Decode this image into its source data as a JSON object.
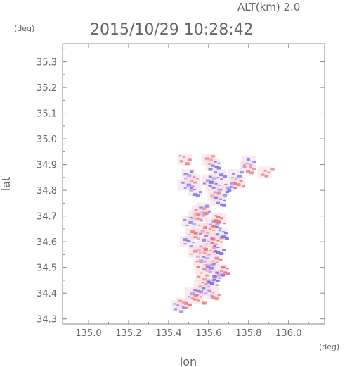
{
  "header": {
    "altitude_label": "ALT(km) 2.0",
    "timestamp": "2015/10/29 10:28:42"
  },
  "chart_data": {
    "type": "heatmap",
    "title": "2015/10/29 10:28:42",
    "subtitle": "ALT(km) 2.0",
    "xlabel": "lon",
    "ylabel": "lat",
    "x_unit": "(deg)",
    "y_unit": "(deg)",
    "xlim": [
      134.87,
      136.18
    ],
    "ylim": [
      34.28,
      35.37
    ],
    "x_ticks": [
      "135.0",
      "135.2",
      "135.4",
      "135.6",
      "135.8",
      "136.0"
    ],
    "x_tick_values": [
      135.0,
      135.2,
      135.4,
      135.6,
      135.8,
      136.0
    ],
    "y_ticks": [
      "34.3",
      "34.4",
      "34.5",
      "34.6",
      "34.7",
      "34.8",
      "34.9",
      "35.0",
      "35.1",
      "35.2",
      "35.3"
    ],
    "y_tick_values": [
      34.3,
      34.4,
      34.5,
      34.6,
      34.7,
      34.8,
      34.9,
      35.0,
      35.1,
      35.2,
      35.3
    ],
    "grid": false,
    "colors": {
      "positive": "#f07070",
      "negative": "#6f6ff2",
      "neutral": "#f1d3dd"
    },
    "cells": [
      {
        "lon": 135.48,
        "lat": 34.92,
        "v": 0.6
      },
      {
        "lon": 135.6,
        "lat": 34.92,
        "v": 0.5
      },
      {
        "lon": 135.62,
        "lat": 34.9,
        "v": -0.7
      },
      {
        "lon": 135.8,
        "lat": 34.91,
        "v": -0.6
      },
      {
        "lon": 135.79,
        "lat": 34.89,
        "v": 0.4
      },
      {
        "lon": 135.5,
        "lat": 34.86,
        "v": -0.5
      },
      {
        "lon": 135.52,
        "lat": 34.84,
        "v": 0.5
      },
      {
        "lon": 135.48,
        "lat": 34.82,
        "v": -0.4
      },
      {
        "lon": 135.53,
        "lat": 34.8,
        "v": -0.6
      },
      {
        "lon": 135.6,
        "lat": 34.84,
        "v": -0.8
      },
      {
        "lon": 135.62,
        "lat": 34.82,
        "v": -0.7
      },
      {
        "lon": 135.65,
        "lat": 34.86,
        "v": -0.6
      },
      {
        "lon": 135.67,
        "lat": 34.8,
        "v": -0.8
      },
      {
        "lon": 135.63,
        "lat": 34.78,
        "v": 0.3
      },
      {
        "lon": 135.65,
        "lat": 34.76,
        "v": -0.7
      },
      {
        "lon": 135.73,
        "lat": 34.86,
        "v": -0.5
      },
      {
        "lon": 135.7,
        "lat": 34.82,
        "v": -0.6
      },
      {
        "lon": 135.75,
        "lat": 34.83,
        "v": 0.6
      },
      {
        "lon": 135.88,
        "lat": 34.87,
        "v": 0.5
      },
      {
        "lon": 135.55,
        "lat": 34.72,
        "v": 0.7
      },
      {
        "lon": 135.58,
        "lat": 34.73,
        "v": -0.5
      },
      {
        "lon": 135.53,
        "lat": 34.7,
        "v": 0.3
      },
      {
        "lon": 135.56,
        "lat": 34.7,
        "v": 0.4
      },
      {
        "lon": 135.5,
        "lat": 34.68,
        "v": -0.4
      },
      {
        "lon": 135.62,
        "lat": 34.67,
        "v": -0.9
      },
      {
        "lon": 135.65,
        "lat": 34.69,
        "v": 0.8
      },
      {
        "lon": 135.6,
        "lat": 34.65,
        "v": 0.6
      },
      {
        "lon": 135.55,
        "lat": 34.65,
        "v": 0.3
      },
      {
        "lon": 135.52,
        "lat": 34.63,
        "v": 0.5
      },
      {
        "lon": 135.58,
        "lat": 34.62,
        "v": -0.6
      },
      {
        "lon": 135.63,
        "lat": 34.61,
        "v": 0.9
      },
      {
        "lon": 135.66,
        "lat": 34.63,
        "v": -0.7
      },
      {
        "lon": 135.49,
        "lat": 34.6,
        "v": -0.5
      },
      {
        "lon": 135.56,
        "lat": 34.58,
        "v": 0.4
      },
      {
        "lon": 135.6,
        "lat": 34.57,
        "v": 0.8
      },
      {
        "lon": 135.64,
        "lat": 34.57,
        "v": -0.8
      },
      {
        "lon": 135.53,
        "lat": 34.56,
        "v": 0.3
      },
      {
        "lon": 135.58,
        "lat": 34.54,
        "v": -0.5
      },
      {
        "lon": 135.62,
        "lat": 34.53,
        "v": 0.6
      },
      {
        "lon": 135.56,
        "lat": 34.51,
        "v": 0.7
      },
      {
        "lon": 135.6,
        "lat": 34.5,
        "v": -0.6
      },
      {
        "lon": 135.66,
        "lat": 34.49,
        "v": 0.9
      },
      {
        "lon": 135.64,
        "lat": 34.47,
        "v": -0.7
      },
      {
        "lon": 135.57,
        "lat": 34.47,
        "v": 0.5
      },
      {
        "lon": 135.61,
        "lat": 34.44,
        "v": -0.8
      },
      {
        "lon": 135.56,
        "lat": 34.43,
        "v": 0.6
      },
      {
        "lon": 135.58,
        "lat": 34.41,
        "v": -0.5
      },
      {
        "lon": 135.62,
        "lat": 34.4,
        "v": 0.4
      },
      {
        "lon": 135.52,
        "lat": 34.4,
        "v": -0.6
      },
      {
        "lon": 135.54,
        "lat": 34.38,
        "v": 0.7
      },
      {
        "lon": 135.47,
        "lat": 34.36,
        "v": 0.8
      },
      {
        "lon": 135.45,
        "lat": 34.35,
        "v": -0.4
      }
    ]
  }
}
